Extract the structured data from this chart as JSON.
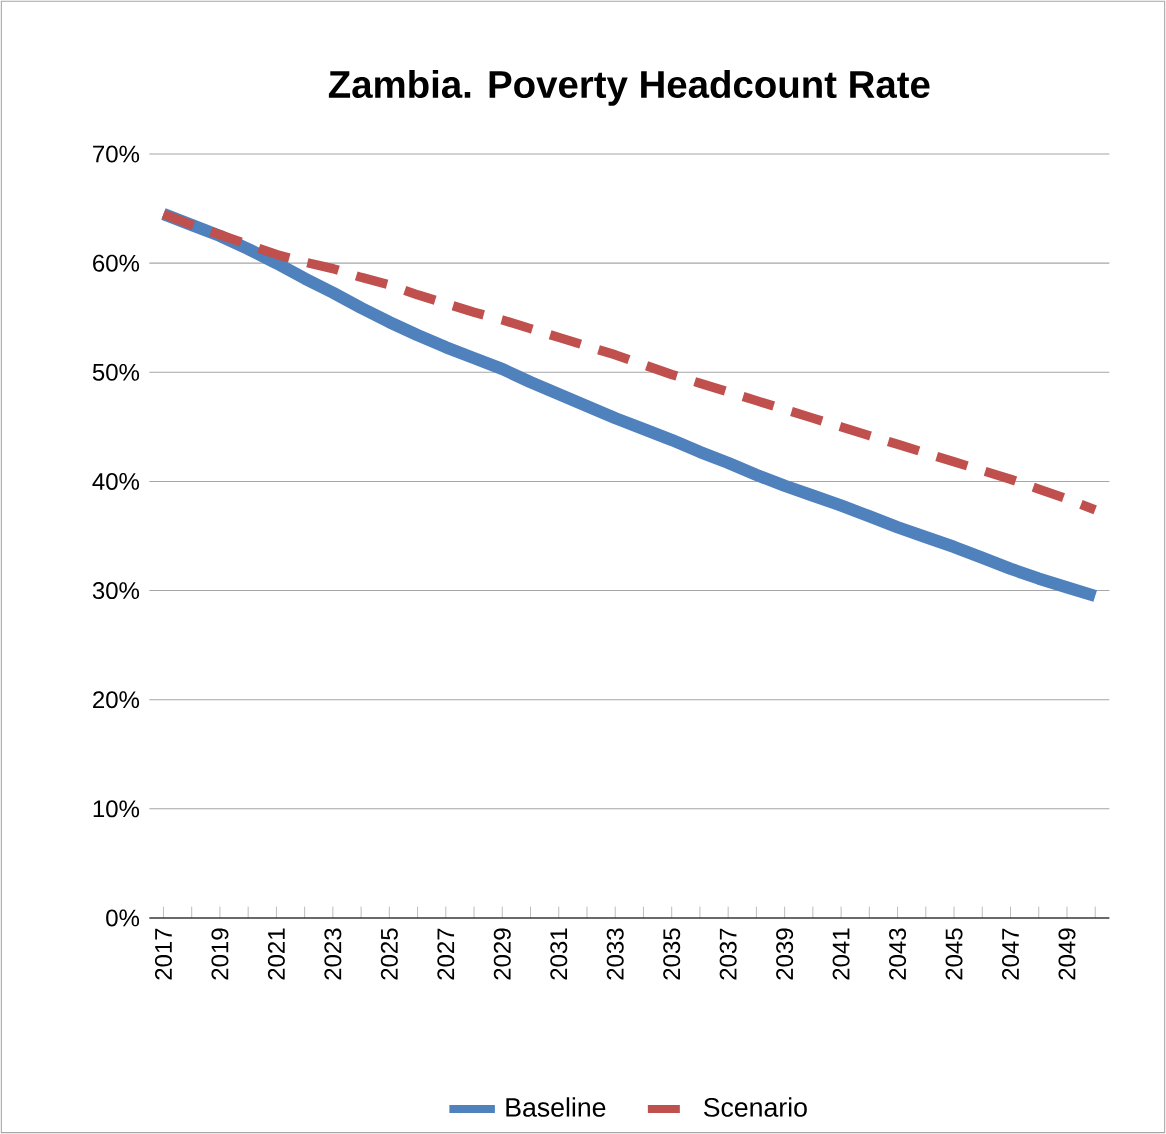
{
  "chart_data": {
    "type": "line",
    "title": "Zambia. Poverty Headcount Rate",
    "categories": [
      "2017",
      null,
      "2019",
      null,
      "2021",
      null,
      "2023",
      null,
      "2025",
      null,
      "2027",
      null,
      "2029",
      null,
      "2031",
      null,
      "2033",
      null,
      "2035",
      null,
      "2037",
      null,
      "2039",
      null,
      "2041",
      null,
      "2043",
      null,
      "2045",
      null,
      "2047",
      null,
      "2049",
      null
    ],
    "series": [
      {
        "name": "Baseline",
        "color": "#4f81bd",
        "line_style": "solid",
        "values": [
          64.5,
          63.5,
          62.5,
          61.3,
          60.0,
          58.6,
          57.3,
          55.9,
          54.6,
          53.4,
          52.3,
          51.3,
          50.3,
          49.1,
          48.0,
          46.9,
          45.8,
          44.8,
          43.8,
          42.7,
          41.7,
          40.6,
          39.6,
          38.7,
          37.8,
          36.8,
          35.8,
          34.9,
          34.0,
          33.0,
          32.0,
          31.1,
          30.3,
          29.5
        ]
      },
      {
        "name": "Scenario",
        "color": "#c0504d",
        "line_style": "dashed",
        "values": [
          64.5,
          63.5,
          62.6,
          61.7,
          60.8,
          60.1,
          59.5,
          58.7,
          58.0,
          57.1,
          56.3,
          55.5,
          54.8,
          54.0,
          53.2,
          52.4,
          51.6,
          50.7,
          49.8,
          49.0,
          48.2,
          47.4,
          46.6,
          45.8,
          45.0,
          44.2,
          43.4,
          42.6,
          41.8,
          41.0,
          40.2,
          39.3,
          38.4,
          37.4
        ]
      }
    ],
    "ylim": [
      0,
      70
    ],
    "yticks": [
      {
        "value": 0,
        "label": "0%"
      },
      {
        "value": 10,
        "label": "10%"
      },
      {
        "value": 20,
        "label": "20%"
      },
      {
        "value": 30,
        "label": "30%"
      },
      {
        "value": 40,
        "label": "40%"
      },
      {
        "value": 50,
        "label": "50%"
      },
      {
        "value": 60,
        "label": "60%"
      },
      {
        "value": 70,
        "label": "70%"
      }
    ],
    "grid": "y",
    "legend": "bottom",
    "marker": "none"
  }
}
